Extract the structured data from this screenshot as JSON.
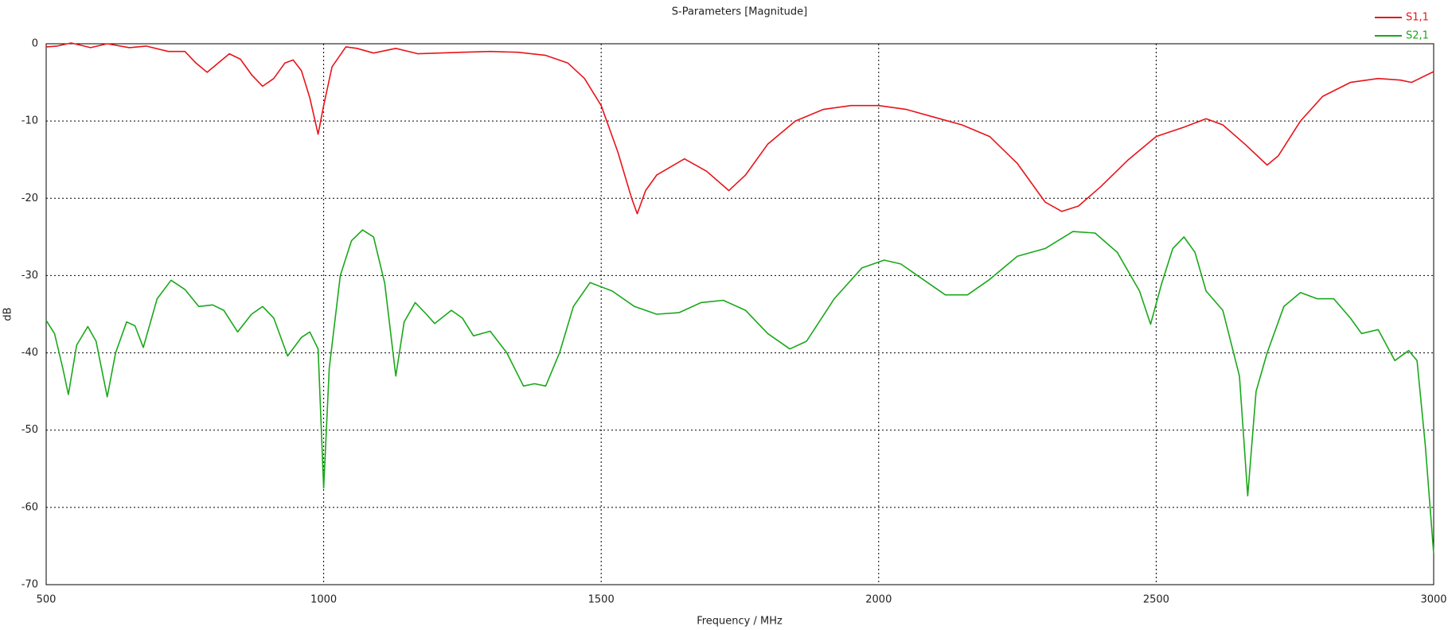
{
  "chart_data": {
    "type": "line",
    "title": "S-Parameters [Magnitude]",
    "xlabel": "Frequency / MHz",
    "ylabel": "dB",
    "xlim": [
      500,
      3000
    ],
    "xticks": [
      500,
      1000,
      1500,
      2000,
      2500,
      3000
    ],
    "ylim": [
      -70,
      0
    ],
    "yticks": [
      -70,
      -60,
      -50,
      -40,
      -30,
      -20,
      -10,
      0
    ],
    "grid": true,
    "legend": "top-right",
    "series": [
      {
        "name": "S1,1",
        "color": "#e8141a",
        "x": [
          500,
          520,
          545,
          580,
          610,
          650,
          680,
          720,
          750,
          770,
          790,
          810,
          830,
          850,
          870,
          890,
          910,
          930,
          945,
          960,
          975,
          990,
          1000,
          1015,
          1040,
          1060,
          1090,
          1130,
          1170,
          1250,
          1300,
          1350,
          1400,
          1440,
          1470,
          1500,
          1530,
          1555,
          1565,
          1580,
          1600,
          1650,
          1690,
          1730,
          1760,
          1800,
          1850,
          1900,
          1950,
          2000,
          2050,
          2100,
          2150,
          2200,
          2250,
          2300,
          2330,
          2360,
          2400,
          2450,
          2500,
          2550,
          2590,
          2620,
          2660,
          2700,
          2720,
          2760,
          2800,
          2850,
          2900,
          2940,
          2960,
          3000
        ],
        "values": [
          -0.4,
          -0.3,
          0.1,
          -0.5,
          0,
          -0.5,
          -0.3,
          -1,
          -1,
          -2.5,
          -3.7,
          -2.5,
          -1.3,
          -2,
          -4,
          -5.5,
          -4.5,
          -2.5,
          -2.1,
          -3.5,
          -7,
          -11.7,
          -8,
          -3,
          -0.4,
          -0.6,
          -1.2,
          -0.6,
          -1.3,
          -1.1,
          -1,
          -1.1,
          -1.5,
          -2.5,
          -4.5,
          -8,
          -14,
          -20,
          -22,
          -19,
          -17,
          -14.9,
          -16.5,
          -19,
          -17,
          -13,
          -10,
          -8.5,
          -8,
          -8,
          -8.5,
          -9.5,
          -10.5,
          -12,
          -15.5,
          -20.5,
          -21.7,
          -21,
          -18.5,
          -15,
          -12,
          -10.8,
          -9.7,
          -10.5,
          -13,
          -15.7,
          -14.5,
          -10,
          -6.8,
          -5,
          -4.5,
          -4.7,
          -5,
          -3.6
        ]
      },
      {
        "name": "S2,1",
        "color": "#1aa81a",
        "x": [
          500,
          515,
          530,
          540,
          555,
          575,
          590,
          610,
          625,
          645,
          660,
          675,
          700,
          725,
          750,
          775,
          800,
          820,
          845,
          870,
          890,
          910,
          935,
          960,
          975,
          990,
          1000,
          1010,
          1030,
          1050,
          1070,
          1090,
          1110,
          1130,
          1145,
          1165,
          1185,
          1200,
          1230,
          1250,
          1270,
          1300,
          1330,
          1360,
          1380,
          1400,
          1425,
          1450,
          1480,
          1520,
          1560,
          1600,
          1640,
          1680,
          1720,
          1760,
          1800,
          1840,
          1870,
          1920,
          1970,
          2010,
          2040,
          2080,
          2120,
          2160,
          2200,
          2250,
          2300,
          2350,
          2390,
          2430,
          2470,
          2490,
          2510,
          2530,
          2550,
          2570,
          2590,
          2620,
          2650,
          2665,
          2680,
          2700,
          2730,
          2760,
          2790,
          2820,
          2850,
          2870,
          2900,
          2930,
          2955,
          2970,
          2985,
          3000
        ],
        "values": [
          -35.8,
          -37.5,
          -42,
          -45.4,
          -39,
          -36.6,
          -38.5,
          -45.7,
          -40,
          -36,
          -36.5,
          -39.3,
          -33,
          -30.6,
          -31.8,
          -34,
          -33.8,
          -34.5,
          -37.3,
          -35,
          -34,
          -35.5,
          -40.4,
          -38,
          -37.3,
          -39.5,
          -57.5,
          -42,
          -30,
          -25.5,
          -24.1,
          -25,
          -31,
          -43,
          -36,
          -33.5,
          -35,
          -36.2,
          -34.5,
          -35.5,
          -37.8,
          -37.2,
          -40,
          -44.3,
          -44,
          -44.3,
          -40,
          -34,
          -30.9,
          -32,
          -34,
          -35,
          -34.8,
          -33.5,
          -33.2,
          -34.5,
          -37.5,
          -39.5,
          -38.5,
          -33,
          -29,
          -28,
          -28.5,
          -30.5,
          -32.5,
          -32.5,
          -30.5,
          -27.5,
          -26.5,
          -24.3,
          -24.5,
          -27,
          -32,
          -36.3,
          -31,
          -26.5,
          -25,
          -27,
          -32,
          -34.5,
          -43,
          -58.5,
          -45,
          -40,
          -34,
          -32.2,
          -33,
          -33,
          -35.5,
          -37.5,
          -37,
          -41,
          -39.7,
          -41,
          -52,
          -66
        ]
      }
    ]
  }
}
